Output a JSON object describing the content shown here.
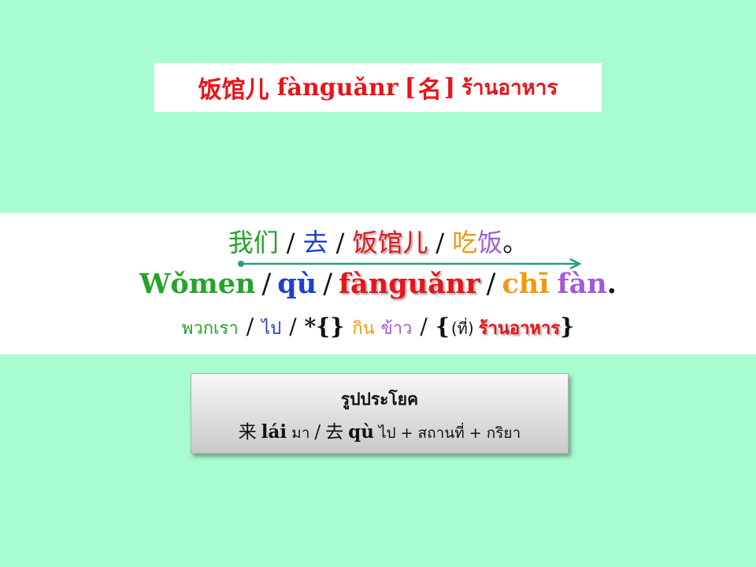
{
  "title": {
    "hanzi": "饭馆儿",
    "pinyin": "fànguǎnr",
    "pos_open": "[",
    "pos": "名",
    "pos_close": "]",
    "thai": "ร้านอาหาร"
  },
  "sentence": {
    "hanzi": {
      "subject": "我们",
      "verb": "去",
      "place": "饭馆儿",
      "action_1": "吃",
      "action_2": "饭",
      "end": "。",
      "sep": "/"
    },
    "pinyin": {
      "subject": "Wǒmen",
      "verb": "qù",
      "place": "fànguǎnr",
      "action_1": "chī",
      "action_2": "fàn",
      "end": ".",
      "sep": "/"
    },
    "thai": {
      "subject": "พวกเรา",
      "verb": "ไป",
      "marker": "*{}",
      "action_1": "กิน",
      "action_2": "ข้าว",
      "open": "{",
      "particle": "(ที่)",
      "place": "ร้านอาหาร",
      "close": "}",
      "sep": "/"
    }
  },
  "pattern": {
    "title": "รูปประโยค",
    "lai_hanzi": "来",
    "lai_pinyin": "lái",
    "lai_thai": "มา",
    "slash": "/",
    "qu_hanzi": "去",
    "qu_pinyin": "qù",
    "qu_thai": "ไป",
    "plus1": "+",
    "place": "สถานที่",
    "plus2": "+",
    "verb": "กริยา"
  },
  "colors": {
    "background": "#a7fcd0",
    "red": "#e8141b",
    "green": "#25a32a",
    "blue": "#1f3fd0",
    "orange": "#f09a10",
    "purple": "#a05ad8",
    "arrow": "#2a9a84"
  }
}
